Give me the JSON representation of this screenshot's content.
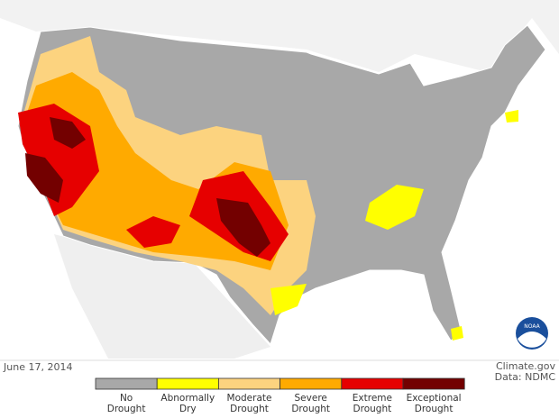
{
  "map": {
    "date": "June 17, 2014",
    "credit": "Climate.gov",
    "source": "Data: NDMC",
    "logo": "NOAA"
  },
  "legend": {
    "items": [
      {
        "label": [
          "No",
          "Drought"
        ],
        "color": "#a8a8a8"
      },
      {
        "label": [
          "Abnormally",
          "Dry"
        ],
        "color": "#ffff00"
      },
      {
        "label": [
          "Moderate",
          "Drought"
        ],
        "color": "#fcd37f"
      },
      {
        "label": [
          "Severe",
          "Drought"
        ],
        "color": "#ffaa00"
      },
      {
        "label": [
          "Extreme",
          "Drought"
        ],
        "color": "#e60000"
      },
      {
        "label": [
          "Exceptional",
          "Drought"
        ],
        "color": "#730000"
      }
    ]
  }
}
